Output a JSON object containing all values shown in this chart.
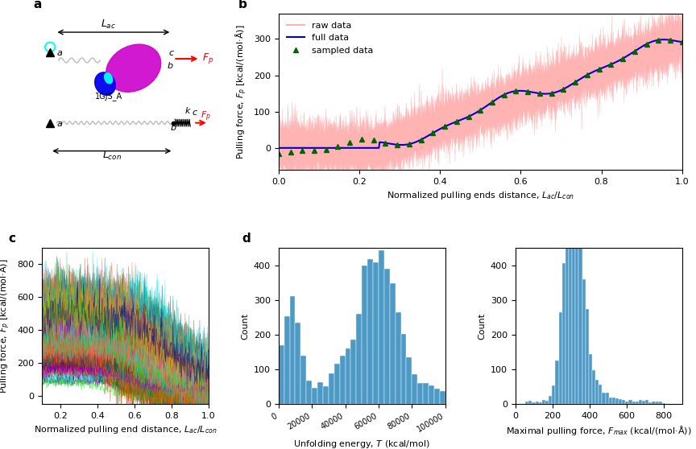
{
  "panel_a": {
    "label": "a"
  },
  "panel_b": {
    "label": "b",
    "xlabel": "Normalized pulling ends distance, $L_{ac}/L_{con}$",
    "ylabel": "Pulling force, $F_p$ [kcal/(mol·Å)]",
    "ylim": [
      -60,
      370
    ],
    "xlim": [
      0.0,
      1.0
    ],
    "yticks": [
      0,
      100,
      200,
      300
    ],
    "xticks": [
      0.0,
      0.2,
      0.4,
      0.6,
      0.8,
      1.0
    ],
    "raw_color": "#ffb3b3",
    "full_color": "#0000cc",
    "sampled_color": "#006400"
  },
  "panel_c": {
    "label": "c",
    "xlabel": "Normalized pulling end distance, $L_{ac}/L_{con}$",
    "ylabel": "Pulling force, $F_p$ [kcal/(mol·Å)]",
    "ylim": [
      -50,
      900
    ],
    "xlim": [
      0.1,
      1.0
    ],
    "yticks": [
      0,
      200,
      400,
      600,
      800
    ],
    "xticks": [
      0.2,
      0.4,
      0.6,
      0.8,
      1.0
    ]
  },
  "panel_d_left": {
    "label": "d",
    "xlabel": "Unfolding energy, $T$ (kcal/mol)",
    "ylabel": "Count",
    "xlim": [
      0,
      100000
    ],
    "ylim": [
      0,
      450
    ],
    "xticks": [
      0,
      20000,
      40000,
      60000,
      80000,
      100000
    ],
    "xticklabels": [
      "0",
      "20000",
      "40000",
      "60000",
      "80000",
      "100000"
    ],
    "yticks": [
      0,
      100,
      200,
      300,
      400
    ],
    "bar_color": "#4e9ac7"
  },
  "panel_d_right": {
    "xlabel": "Maximal pulling force, $F_{max}$ (kcal/(mol·Å))",
    "ylabel": "Count",
    "xlim": [
      0,
      900
    ],
    "ylim": [
      0,
      450
    ],
    "xticks": [
      0,
      200,
      400,
      600,
      800
    ],
    "yticks": [
      0,
      100,
      200,
      300,
      400
    ],
    "bar_color": "#4e9ac7"
  },
  "background_color": "#ffffff"
}
